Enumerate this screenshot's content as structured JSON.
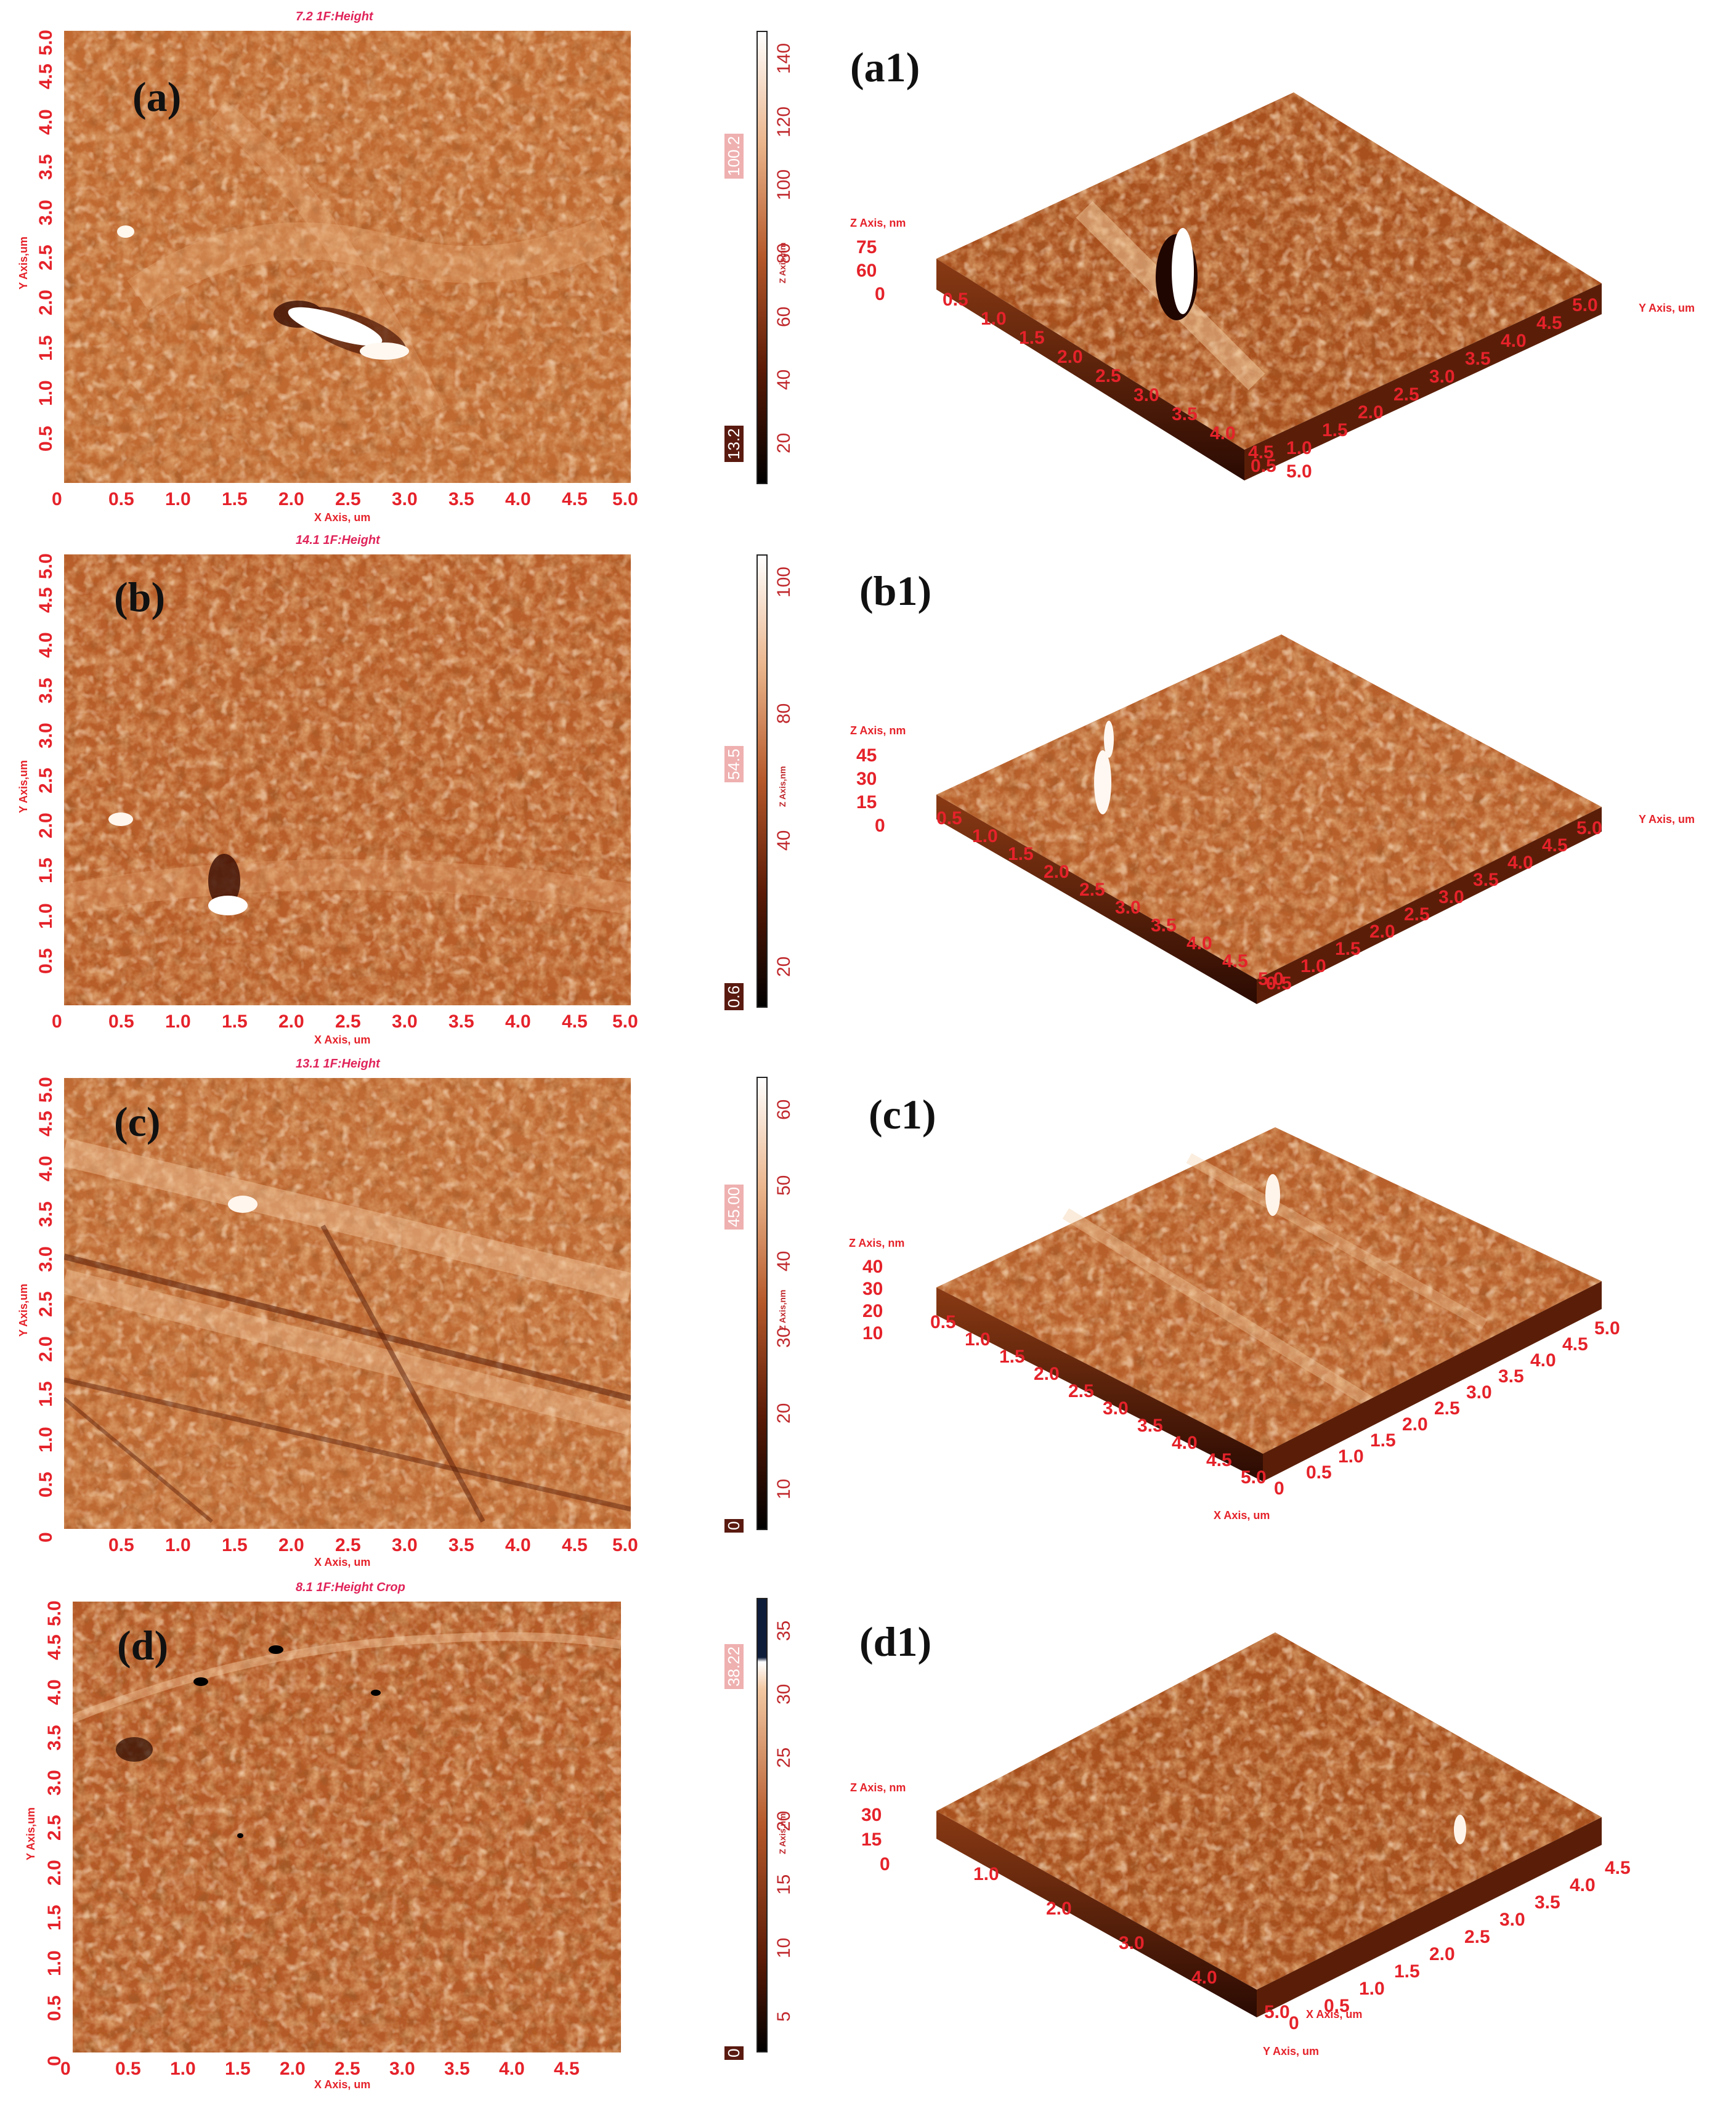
{
  "colors": {
    "afm_base": "#c06a32",
    "afm_light": "#f4c08e",
    "afm_dark": "#5e2008",
    "axis_red": "#e5222a",
    "title_pink": "#e0245a"
  },
  "panels": [
    {
      "label": "(a)",
      "title": "7.2 1F:Height",
      "x_axis_title": "X Axis, um",
      "y_axis_title": "Y Axis,um",
      "x_ticks": [
        "0",
        "0.5",
        "1.0",
        "1.5",
        "2.0",
        "2.5",
        "3.0",
        "3.5",
        "4.0",
        "4.5",
        "5.0"
      ],
      "y_ticks": [
        "0.5",
        "1.0",
        "1.5",
        "2.0",
        "2.5",
        "3.0",
        "3.5",
        "4.0",
        "4.5",
        "5.0"
      ],
      "scale_ticks": [
        "140",
        "120",
        "100",
        "80",
        "60",
        "40",
        "20"
      ],
      "scale_badge_top": "100.2",
      "scale_badge_bottom": "13.2",
      "scale_unit": "Z Axis,nm",
      "surface": {
        "label": "(a1)",
        "z_title": "Z Axis, nm",
        "z_ticks": [
          "75",
          "60",
          "0"
        ],
        "left_axis_ticks": [
          "0.5",
          "1.0",
          "1.5",
          "2.0",
          "2.5",
          "3.0",
          "3.5",
          "4.0",
          "4.5",
          "5.0"
        ],
        "right_axis_title": "Y Axis, um",
        "right_axis_ticks": [
          "0.5",
          "1.0",
          "1.5",
          "2.0",
          "2.5",
          "3.0",
          "3.5",
          "4.0",
          "4.5",
          "5.0"
        ]
      }
    },
    {
      "label": "(b)",
      "title": "14.1 1F:Height",
      "x_axis_title": "X Axis, um",
      "y_axis_title": "Y Axis,um",
      "x_ticks": [
        "0",
        "0.5",
        "1.0",
        "1.5",
        "2.0",
        "2.5",
        "3.0",
        "3.5",
        "4.0",
        "4.5",
        "5.0"
      ],
      "y_ticks": [
        "0.5",
        "1.0",
        "1.5",
        "2.0",
        "2.5",
        "3.0",
        "3.5",
        "4.0",
        "4.5",
        "5.0"
      ],
      "scale_ticks": [
        "100",
        "80",
        "40",
        "20"
      ],
      "scale_badge_top": "54.5",
      "scale_badge_bottom": "0.6",
      "scale_unit": "Z Axis,nm",
      "surface": {
        "label": "(b1)",
        "z_title": "Z Axis, nm",
        "z_ticks": [
          "45",
          "30",
          "15",
          "0"
        ],
        "left_axis_ticks": [
          "0.5",
          "1.0",
          "1.5",
          "2.0",
          "2.5",
          "3.0",
          "3.5",
          "4.0",
          "4.5",
          "5.0"
        ],
        "right_axis_title": "Y Axis, um",
        "right_axis_ticks": [
          "0.5",
          "1.0",
          "1.5",
          "2.0",
          "2.5",
          "3.0",
          "3.5",
          "4.0",
          "4.5",
          "5.0"
        ]
      }
    },
    {
      "label": "(c)",
      "title": "13.1 1F:Height",
      "x_axis_title": "X Axis, um",
      "y_axis_title": "Y Axis,um",
      "x_ticks": [
        "0.5",
        "1.0",
        "1.5",
        "2.0",
        "2.5",
        "3.0",
        "3.5",
        "4.0",
        "4.5",
        "5.0"
      ],
      "y_ticks": [
        "0",
        "0.5",
        "1.0",
        "1.5",
        "2.0",
        "2.5",
        "3.0",
        "3.5",
        "4.0",
        "4.5",
        "5.0"
      ],
      "scale_ticks": [
        "60",
        "50",
        "40",
        "30",
        "20",
        "10"
      ],
      "scale_badge_top": "45.00",
      "scale_badge_bottom": "0",
      "scale_unit": "Z Axis,nm",
      "surface": {
        "label": "(c1)",
        "z_title": "Z Axis, nm",
        "z_ticks": [
          "40",
          "30",
          "20",
          "10"
        ],
        "left_axis_ticks": [
          "0.5",
          "1.0",
          "1.5",
          "2.0",
          "2.5",
          "3.0",
          "3.5",
          "4.0",
          "4.5",
          "5.0"
        ],
        "left_axis_title": "X Axis, um",
        "right_axis_ticks": [
          "0",
          "0.5",
          "1.0",
          "1.5",
          "2.0",
          "2.5",
          "3.0",
          "3.5",
          "4.0",
          "4.5",
          "5.0"
        ]
      }
    },
    {
      "label": "(d)",
      "title": "8.1 1F:Height Crop",
      "x_axis_title": "X Axis, um",
      "y_axis_title": "Y Axis,um",
      "x_ticks": [
        "0",
        "0.5",
        "1.0",
        "1.5",
        "2.0",
        "2.5",
        "3.0",
        "3.5",
        "4.0",
        "4.5"
      ],
      "y_ticks": [
        "0",
        "0.5",
        "1.0",
        "1.5",
        "2.0",
        "2.5",
        "3.0",
        "3.5",
        "4.0",
        "4.5",
        "5.0"
      ],
      "scale_ticks": [
        "35",
        "30",
        "25",
        "20",
        "15",
        "10",
        "5"
      ],
      "scale_badge_top": "38.22",
      "scale_badge_bottom": "0",
      "scale_unit": "Z Axis,nm",
      "surface": {
        "label": "(d1)",
        "z_title": "Z Axis, nm",
        "z_ticks": [
          "30",
          "15",
          "0"
        ],
        "left_axis_ticks": [
          "1.0",
          "2.0",
          "3.0",
          "4.0",
          "5.0"
        ],
        "left_axis_title": "X Axis, um",
        "right_axis_title": "Y Axis, um",
        "right_axis_ticks": [
          "0",
          "0.5",
          "1.0",
          "1.5",
          "2.0",
          "2.5",
          "3.0",
          "3.5",
          "4.0",
          "4.5"
        ]
      }
    }
  ]
}
